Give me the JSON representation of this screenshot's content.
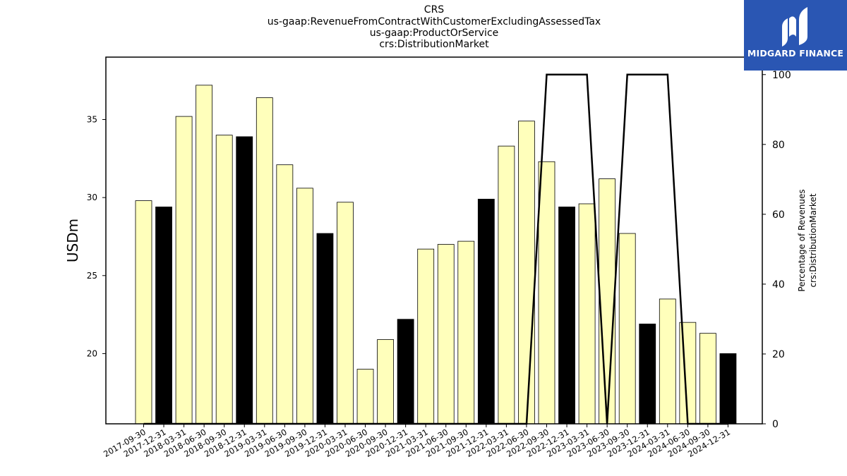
{
  "chart_data": {
    "type": "bar",
    "title": [
      "CRS",
      "us-gaap:RevenueFromContractWithCustomerExcludingAssessedTax",
      "us-gaap:ProductOrService",
      "crs:DistributionMarket"
    ],
    "ylabel": "USDm",
    "y2label": [
      "Percentage of Revenues",
      "crs:DistributionMarket"
    ],
    "ylim": [
      15.5,
      39.0
    ],
    "y2lim": [
      0,
      105
    ],
    "yticks": [
      20,
      25,
      30,
      35
    ],
    "y2ticks": [
      0,
      20,
      40,
      60,
      80,
      100
    ],
    "categories": [
      "2017-09-30",
      "2017-12-31",
      "2018-03-31",
      "2018-06-30",
      "2018-09-30",
      "2018-12-31",
      "2019-03-31",
      "2019-06-30",
      "2019-09-30",
      "2019-12-31",
      "2020-03-31",
      "2020-06-30",
      "2020-09-30",
      "2020-12-31",
      "2021-03-31",
      "2021-06-30",
      "2021-09-30",
      "2021-12-31",
      "2022-03-31",
      "2022-06-30",
      "2022-09-30",
      "2022-12-31",
      "2023-03-31",
      "2023-06-30",
      "2023-09-30",
      "2023-12-31",
      "2024-03-31",
      "2024-06-30",
      "2024-09-30",
      "2024-12-31"
    ],
    "values": [
      29.8,
      29.4,
      35.2,
      37.2,
      34.0,
      33.9,
      36.4,
      32.1,
      30.6,
      27.7,
      29.7,
      19.0,
      20.9,
      22.2,
      26.7,
      27.0,
      27.2,
      29.9,
      33.3,
      34.9,
      32.3,
      29.4,
      29.6,
      31.2,
      27.7,
      21.9,
      23.5,
      22.0,
      21.3,
      20.0
    ],
    "bar_colors": [
      "#ffffbb",
      "#000000",
      "#ffffbb",
      "#ffffbb",
      "#ffffbb",
      "#000000",
      "#ffffbb",
      "#ffffbb",
      "#ffffbb",
      "#000000",
      "#ffffbb",
      "#ffffbb",
      "#ffffbb",
      "#000000",
      "#ffffbb",
      "#ffffbb",
      "#ffffbb",
      "#000000",
      "#ffffbb",
      "#ffffbb",
      "#ffffbb",
      "#000000",
      "#ffffbb",
      "#ffffbb",
      "#ffffbb",
      "#000000",
      "#ffffbb",
      "#ffffbb",
      "#ffffbb",
      "#000000"
    ],
    "line_values": [
      0,
      0,
      0,
      0,
      0,
      0,
      0,
      0,
      0,
      0,
      0,
      0,
      0,
      0,
      0,
      0,
      0,
      0,
      0,
      0,
      100,
      100,
      100,
      0,
      100,
      100,
      100,
      0,
      0,
      0
    ],
    "line_color": "#000000",
    "grid": false
  },
  "logo": {
    "text": "MIDGARD FINANCE",
    "bg_color": "#2a56b3"
  }
}
